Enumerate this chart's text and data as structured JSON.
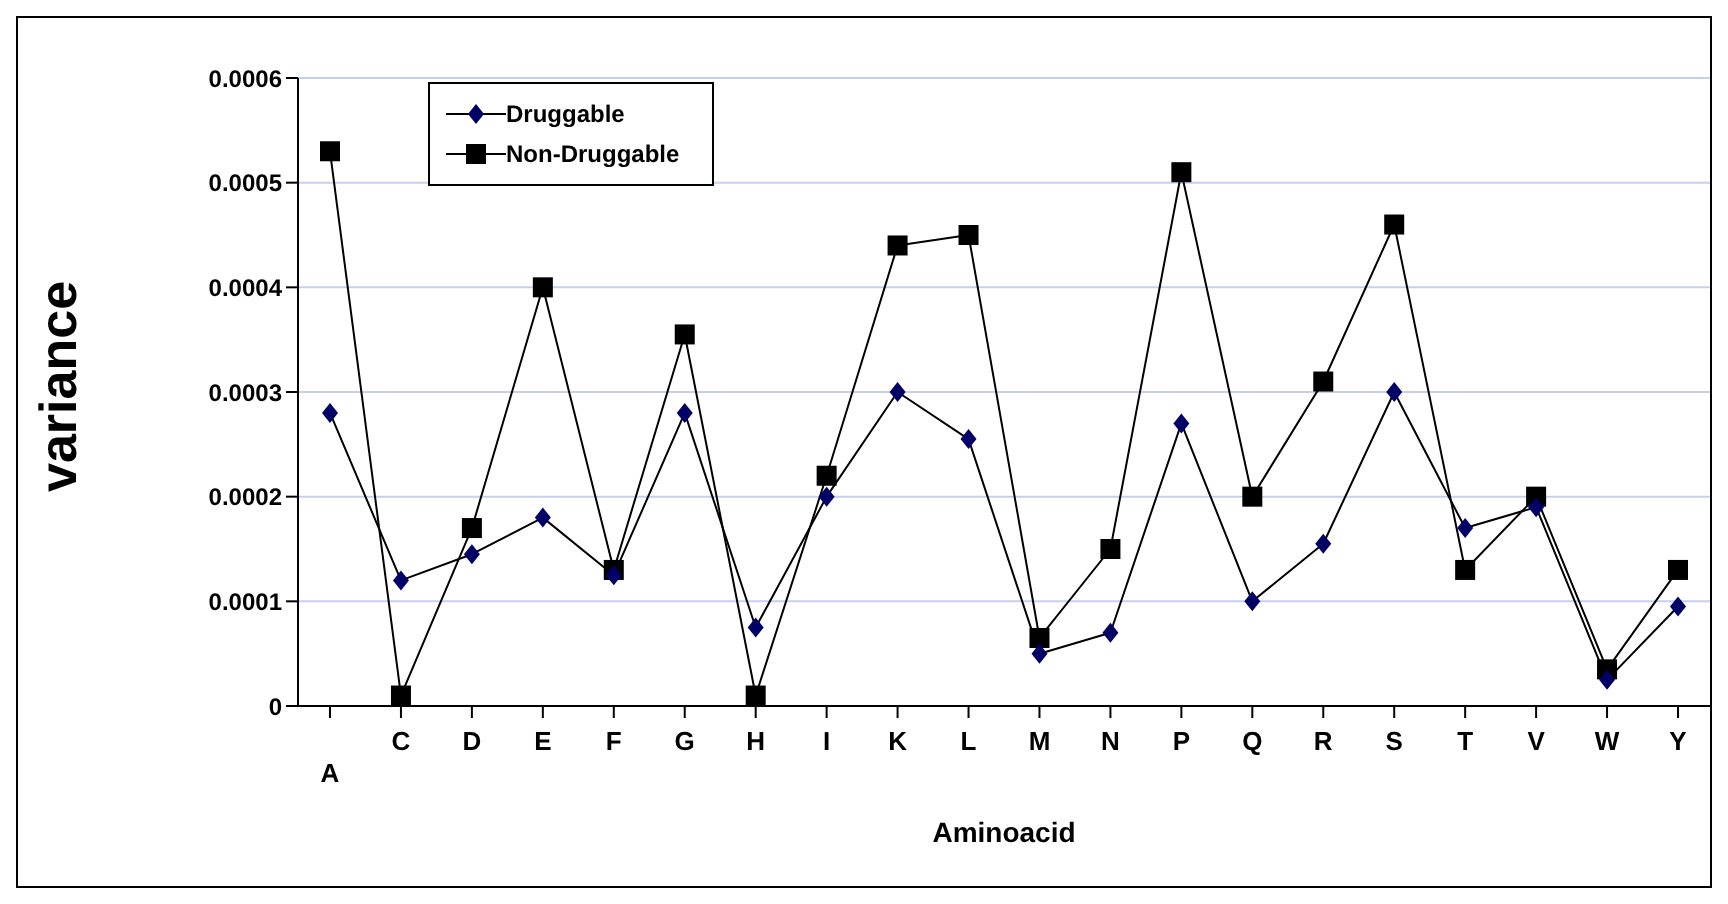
{
  "chart_data": {
    "type": "line",
    "xlabel": "Aminoacid",
    "ylabel": "variance",
    "categories": [
      "A",
      "C",
      "D",
      "E",
      "F",
      "G",
      "H",
      "I",
      "K",
      "L",
      "M",
      "N",
      "P",
      "Q",
      "R",
      "S",
      "T",
      "V",
      "W",
      "Y"
    ],
    "series": [
      {
        "name": "Druggable",
        "color": "#000066",
        "marker": "diamond",
        "values": [
          0.00028,
          0.00012,
          0.000145,
          0.00018,
          0.000125,
          0.00028,
          7.5e-05,
          0.0002,
          0.0003,
          0.000255,
          5e-05,
          7e-05,
          0.00027,
          0.0001,
          0.000155,
          0.0003,
          0.00017,
          0.00019,
          2.5e-05,
          9.5e-05
        ]
      },
      {
        "name": "Non-Druggable",
        "color": "#000000",
        "marker": "square",
        "values": [
          0.00053,
          1e-05,
          0.00017,
          0.0004,
          0.00013,
          0.000355,
          1e-05,
          0.00022,
          0.00044,
          0.00045,
          6.5e-05,
          0.00015,
          0.00051,
          0.0002,
          0.00031,
          0.00046,
          0.00013,
          0.0002,
          3.5e-05,
          0.00013
        ]
      }
    ],
    "ylim": [
      0,
      0.0006
    ],
    "yticks": [
      0,
      0.0001,
      0.0002,
      0.0003,
      0.0004,
      0.0005,
      0.0006
    ],
    "grid": "y",
    "legend": "top left"
  }
}
